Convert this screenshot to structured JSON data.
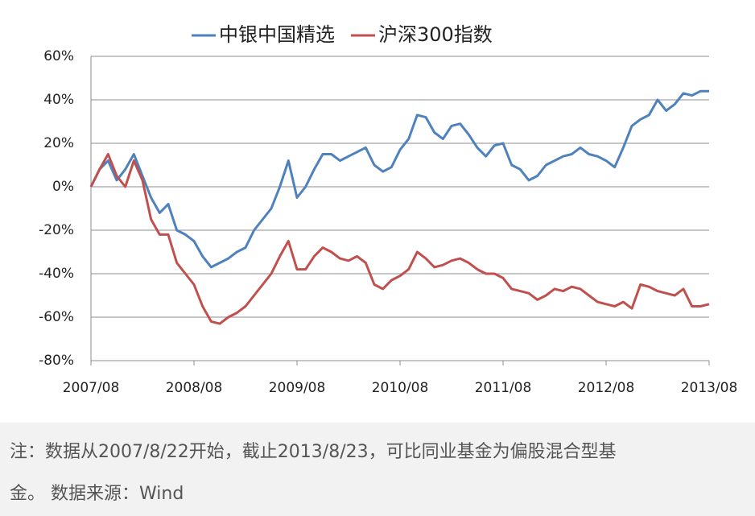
{
  "chart_data": {
    "type": "line",
    "x": [
      "2007/08",
      "2007/09",
      "2007/10",
      "2007/11",
      "2007/12",
      "2008/01",
      "2008/02",
      "2008/03",
      "2008/04",
      "2008/05",
      "2008/06",
      "2008/07",
      "2008/08",
      "2008/09",
      "2008/10",
      "2008/11",
      "2008/12",
      "2009/01",
      "2009/02",
      "2009/03",
      "2009/04",
      "2009/05",
      "2009/06",
      "2009/07",
      "2009/08",
      "2009/09",
      "2009/10",
      "2009/11",
      "2009/12",
      "2010/01",
      "2010/02",
      "2010/03",
      "2010/04",
      "2010/05",
      "2010/06",
      "2010/07",
      "2010/08",
      "2010/09",
      "2010/10",
      "2010/11",
      "2010/12",
      "2011/01",
      "2011/02",
      "2011/03",
      "2011/04",
      "2011/05",
      "2011/06",
      "2011/07",
      "2011/08",
      "2011/09",
      "2011/10",
      "2011/11",
      "2011/12",
      "2012/01",
      "2012/02",
      "2012/03",
      "2012/04",
      "2012/05",
      "2012/06",
      "2012/07",
      "2012/08",
      "2012/09",
      "2012/10",
      "2012/11",
      "2012/12",
      "2013/01",
      "2013/02",
      "2013/03",
      "2013/04",
      "2013/05",
      "2013/06",
      "2013/07",
      "2013/08"
    ],
    "series": [
      {
        "name": "中银中国精选",
        "color": "#4f81bd",
        "values": [
          0,
          8,
          12,
          3,
          8,
          15,
          5,
          -5,
          -12,
          -8,
          -20,
          -22,
          -25,
          -32,
          -37,
          -35,
          -33,
          -30,
          -28,
          -20,
          -15,
          -10,
          0,
          12,
          -5,
          0,
          8,
          15,
          15,
          12,
          14,
          16,
          18,
          10,
          7,
          9,
          17,
          22,
          33,
          32,
          25,
          22,
          28,
          29,
          24,
          18,
          14,
          19,
          20,
          10,
          8,
          3,
          5,
          10,
          12,
          14,
          15,
          18,
          15,
          14,
          12,
          9,
          18,
          28,
          31,
          33,
          40,
          35,
          38,
          43,
          42,
          44,
          44
        ]
      },
      {
        "name": "沪深300指数",
        "color": "#c0504d",
        "values": [
          0,
          8,
          15,
          5,
          0,
          12,
          3,
          -15,
          -22,
          -22,
          -35,
          -40,
          -45,
          -55,
          -62,
          -63,
          -60,
          -58,
          -55,
          -50,
          -45,
          -40,
          -32,
          -25,
          -38,
          -38,
          -32,
          -28,
          -30,
          -33,
          -34,
          -32,
          -35,
          -45,
          -47,
          -43,
          -41,
          -38,
          -30,
          -33,
          -37,
          -36,
          -34,
          -33,
          -35,
          -38,
          -40,
          -40,
          -42,
          -47,
          -48,
          -49,
          -52,
          -50,
          -47,
          -48,
          -46,
          -47,
          -50,
          -53,
          -54,
          -55,
          -53,
          -56,
          -45,
          -46,
          -48,
          -49,
          -50,
          -47,
          -55,
          -55,
          -54
        ]
      }
    ],
    "xticks": [
      "2007/08",
      "2008/08",
      "2009/08",
      "2010/08",
      "2011/08",
      "2012/08",
      "2013/08"
    ],
    "ylim": [
      -80,
      60
    ],
    "yticks": [
      {
        "value": -80,
        "label": "-80%"
      },
      {
        "value": -60,
        "label": "-60%"
      },
      {
        "value": -40,
        "label": "-40%"
      },
      {
        "value": -20,
        "label": "-20%"
      },
      {
        "value": 0,
        "label": "0%"
      },
      {
        "value": 20,
        "label": "20%"
      },
      {
        "value": 40,
        "label": "40%"
      },
      {
        "value": 60,
        "label": "60%"
      }
    ],
    "grid": true,
    "legend": "top"
  },
  "footnote": {
    "lines": [
      "注：数据从2007/8/22开始，截止2013/8/23，可比同业基金为偏股混合型基",
      "金。 数据来源：Wind"
    ]
  }
}
